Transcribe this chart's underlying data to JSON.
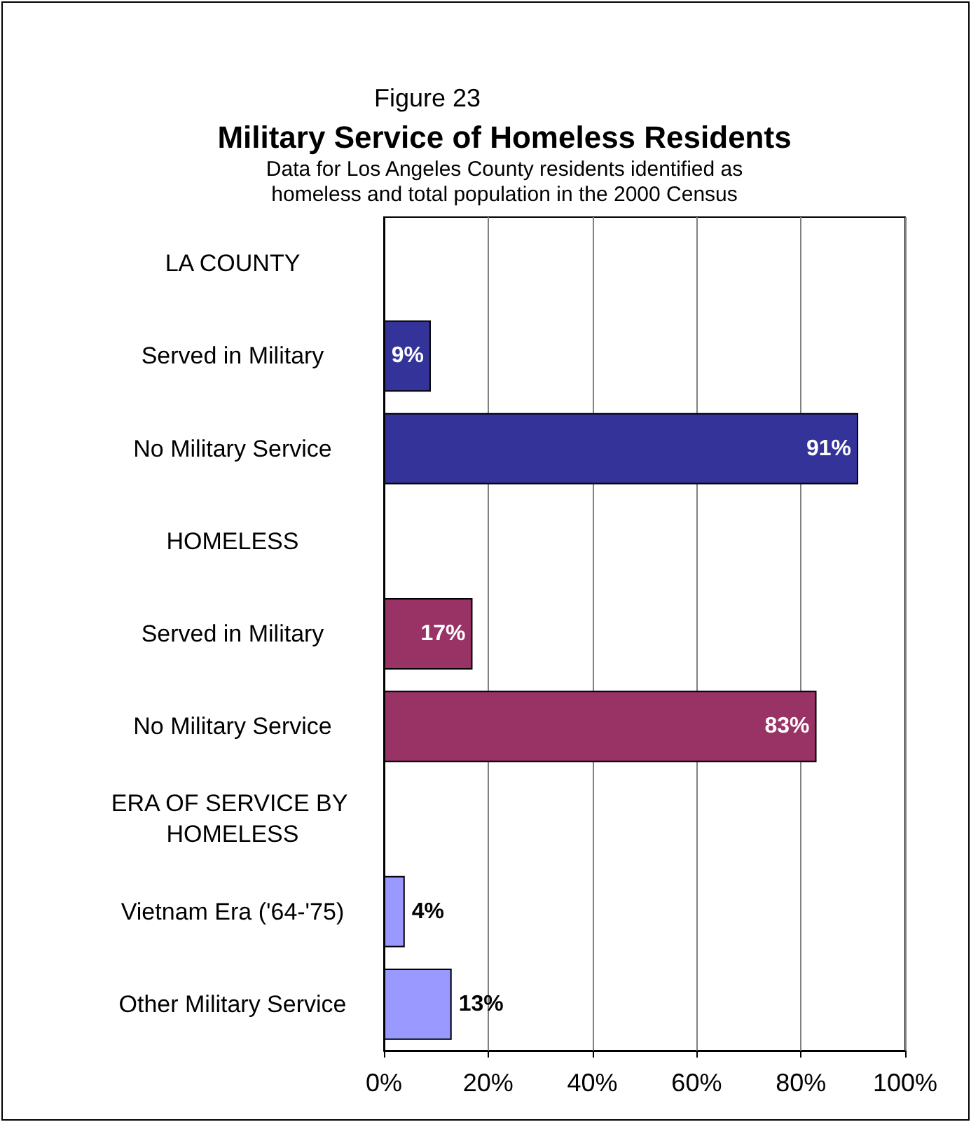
{
  "chart_data": {
    "type": "bar",
    "orientation": "horizontal",
    "title": "Military Service of Homeless Residents",
    "subtitle": "Data for Los Angeles County residents identified as\nhomeless and total population in the 2000 Census",
    "annotations": [
      "Figure 23"
    ],
    "categories": [
      "LA COUNTY",
      "Served in Military",
      "No Military Service",
      "HOMELESS",
      "Served in Military",
      "No Military Service",
      "ERA OF SERVICE BY HOMELESS",
      "Vietnam Era ('64-'75)",
      "Other Military Service"
    ],
    "values": [
      null,
      9,
      91,
      null,
      17,
      83,
      null,
      4,
      13
    ],
    "colors": [
      "#333399",
      "#333399",
      "#333399",
      "#993366",
      "#993366",
      "#993366",
      "#9999ff",
      "#9999ff",
      "#9999ff"
    ],
    "value_labels": [
      null,
      "9%",
      "91%",
      null,
      "17%",
      "83%",
      null,
      "4%",
      "13%"
    ],
    "xlim": [
      0,
      100
    ],
    "xticks": [
      {
        "value": 0,
        "label": "0%"
      },
      {
        "value": 20,
        "label": "20%"
      },
      {
        "value": 40,
        "label": "40%"
      },
      {
        "value": 60,
        "label": "60%"
      },
      {
        "value": 80,
        "label": "80%"
      },
      {
        "value": 100,
        "label": "100%"
      }
    ],
    "grid": "x"
  }
}
